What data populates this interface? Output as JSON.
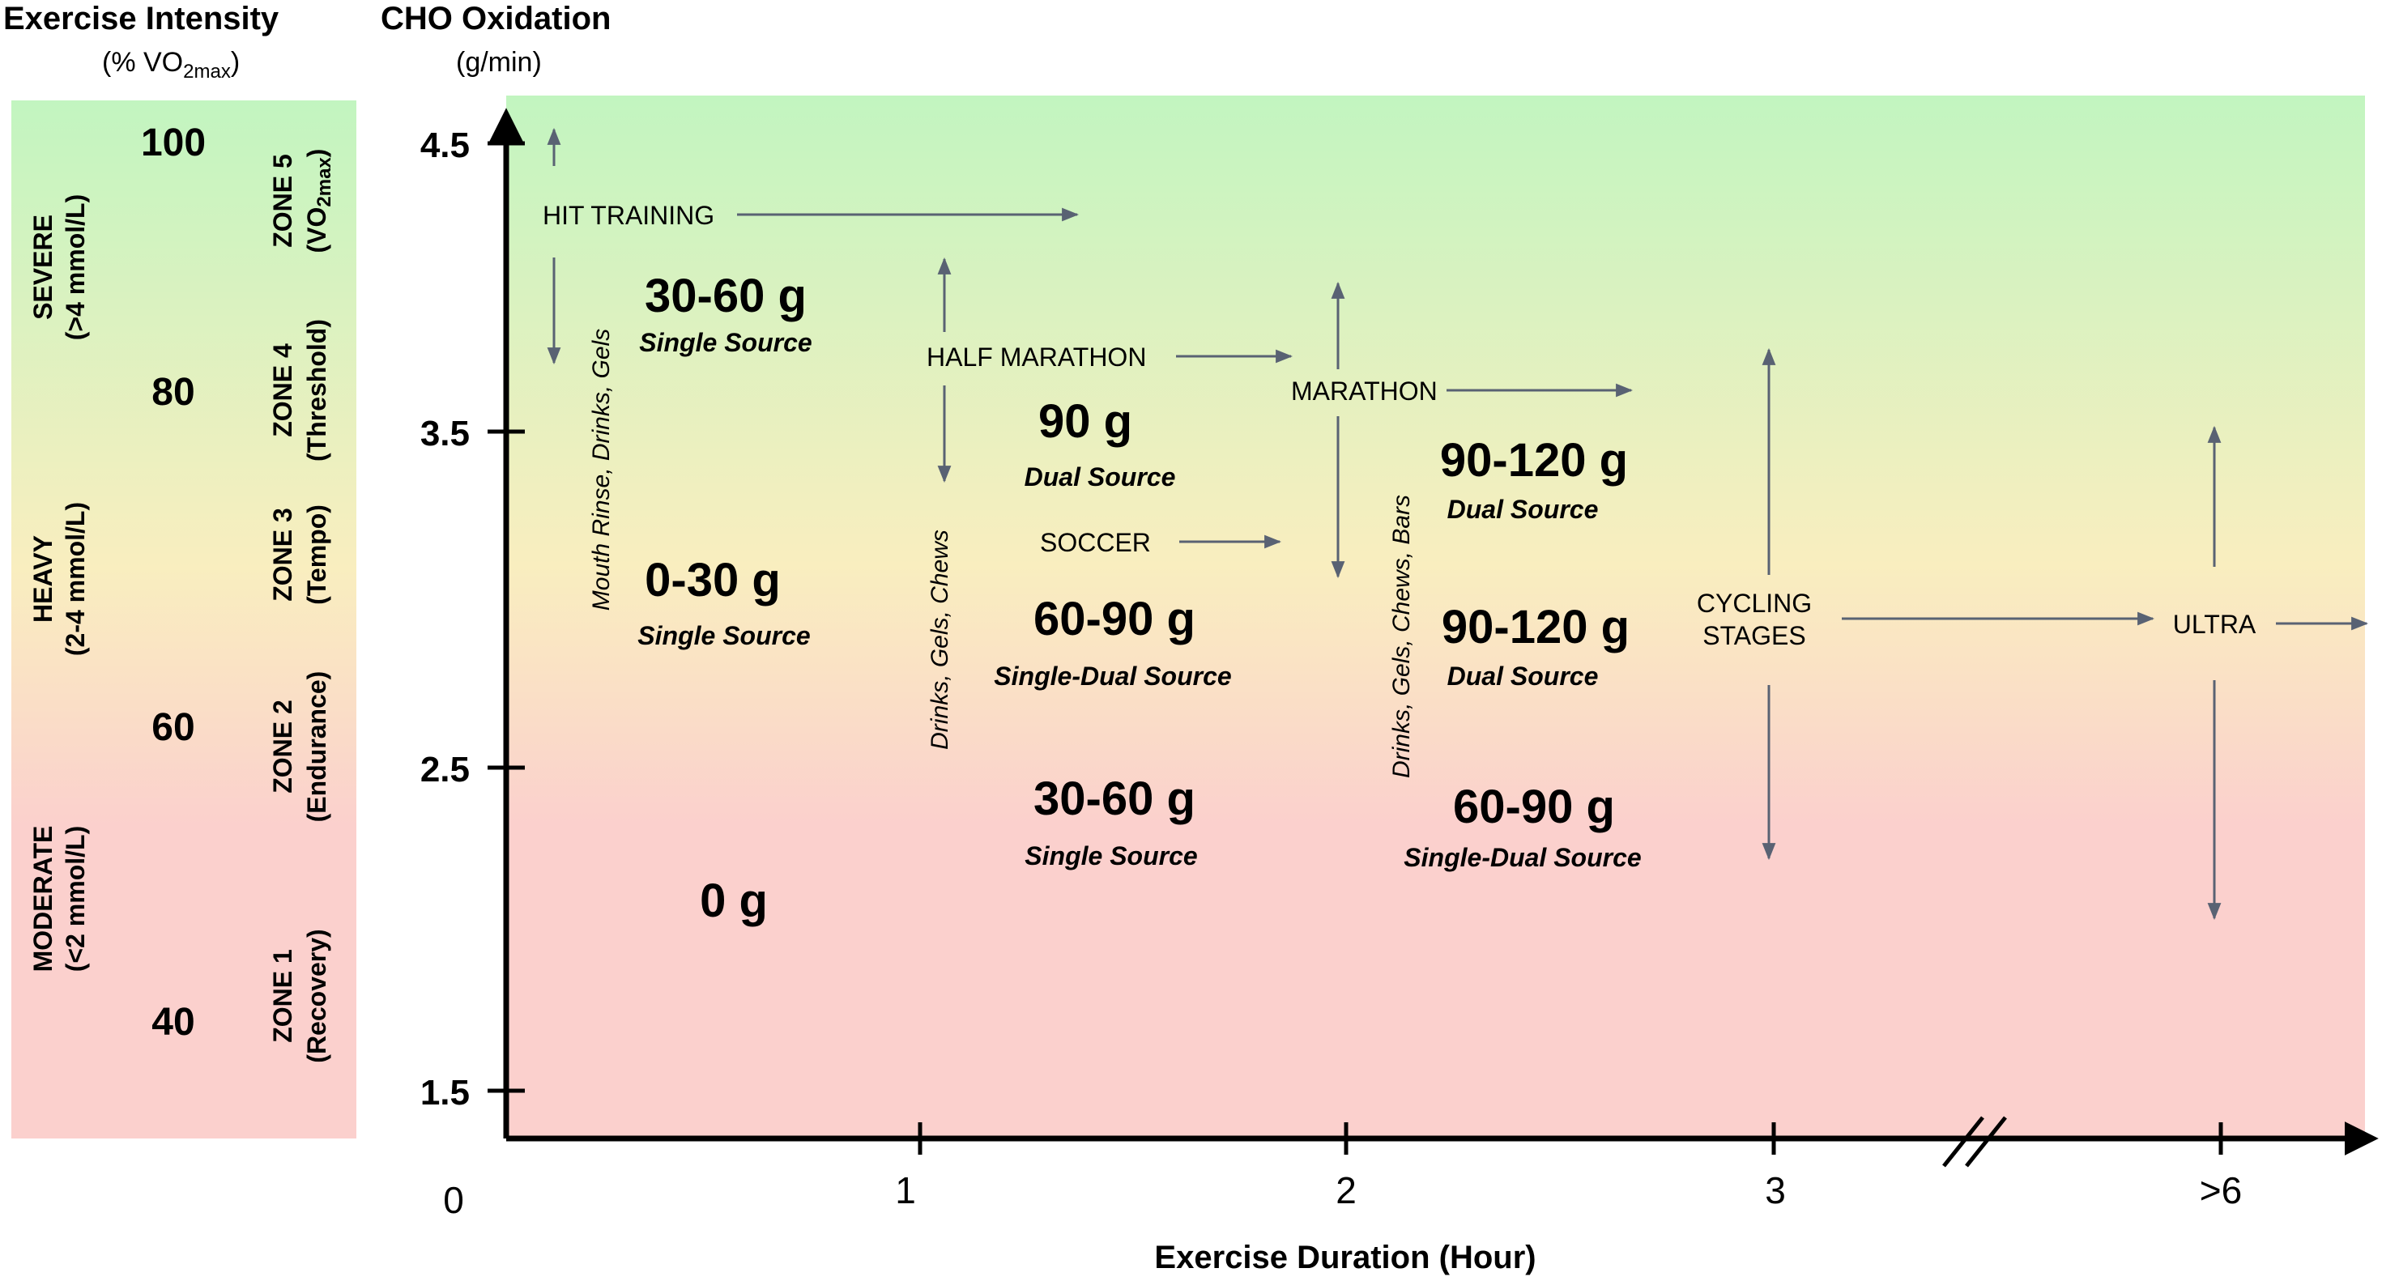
{
  "header": {
    "intensity_title": "Exercise Intensity",
    "intensity_sub_pre": "(% VO",
    "intensity_sub_subscript": "2max",
    "intensity_sub_post": ")",
    "cho_title": "CHO Oxidation",
    "cho_unit": "(g/min)"
  },
  "intensity_scale": {
    "percent_labels": [
      "100",
      "80",
      "60",
      "40"
    ],
    "domains": [
      {
        "line1": "SEVERE",
        "line2": ">4 mmol/L"
      },
      {
        "line1": "HEAVY",
        "line2": "2-4 mmol/L"
      },
      {
        "line1": "MODERATE",
        "line2": "<2 mmol/L"
      }
    ],
    "zones": [
      {
        "line1": "ZONE 5",
        "line2_pre": "(VO",
        "line2_sub": "2max",
        "line2_post": ")"
      },
      {
        "line1": "ZONE 4",
        "line2": "(Threshold)"
      },
      {
        "line1": "ZONE 3",
        "line2": "(Tempo)"
      },
      {
        "line1": "ZONE 2",
        "line2": "(Endurance)"
      },
      {
        "line1": "ZONE 1",
        "line2": "(Recovery)"
      }
    ],
    "gradient": {
      "top": "#c2f5c0",
      "middle": "#f9eebf",
      "bottom": "#fbd0cd"
    }
  },
  "axes": {
    "y_ticks": [
      "4.5",
      "3.5",
      "2.5",
      "1.5"
    ],
    "x_ticks": [
      "0",
      "1",
      "2",
      "3",
      ">6"
    ],
    "x_label": "Exercise Duration (Hour)"
  },
  "events": {
    "hit_training": "HIT TRAINING",
    "half_marathon": "HALF MARATHON",
    "marathon": "MARATHON",
    "soccer": "SOCCER",
    "cycling_line1": "CYCLING",
    "cycling_line2": "STAGES",
    "ultra": "ULTRA"
  },
  "recommendations": [
    {
      "amount": "30-60 g",
      "source": "Single Source"
    },
    {
      "amount": "0-30 g",
      "source": "Single Source"
    },
    {
      "amount": "0 g"
    },
    {
      "amount": "90 g",
      "source": "Dual Source"
    },
    {
      "amount": "60-90 g",
      "source": "Single-Dual Source"
    },
    {
      "amount": "30-60 g",
      "source": "Single Source"
    },
    {
      "amount": "90-120 g",
      "source": "Dual Source"
    },
    {
      "amount": "90-120 g",
      "source": "Dual Source"
    },
    {
      "amount": "60-90 g",
      "source": "Single-Dual Source"
    }
  ],
  "vertical_notes": {
    "col1": "Mouth Rinse, Drinks, Gels",
    "col2": "Drinks, Gels, Chews",
    "col3": "Drinks, Gels, Chews, Bars"
  },
  "colors": {
    "arrow": "#596273",
    "axis": "#000000"
  }
}
